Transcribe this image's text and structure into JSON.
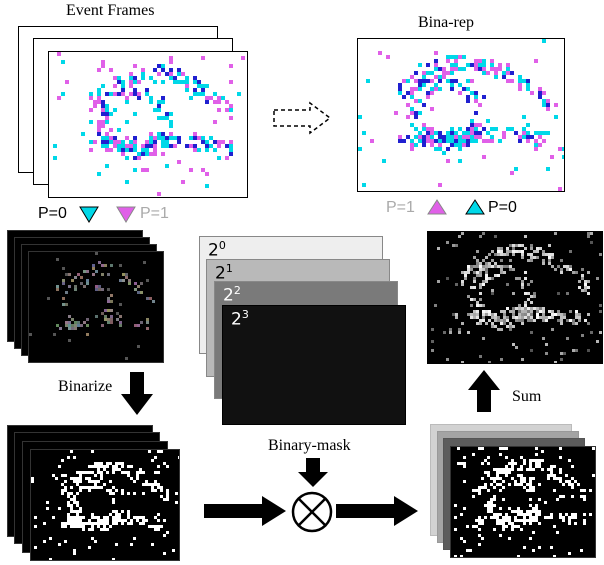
{
  "titles": {
    "event_frames": "Event Frames",
    "bina_rep": "Bina-rep"
  },
  "legend_left": {
    "p0": "P=0",
    "p1": "P=1"
  },
  "legend_right": {
    "p1": "P=1",
    "p0": "P=0"
  },
  "steps": {
    "binarize": "Binarize",
    "binary_mask": "Binary-mask",
    "sum": "Sum"
  },
  "weights": [
    {
      "base": "2",
      "exp": "0"
    },
    {
      "base": "2",
      "exp": "1"
    },
    {
      "base": "2",
      "exp": "2"
    },
    {
      "base": "2",
      "exp": "3"
    }
  ],
  "colors": {
    "p0_cyan": "#00d8e8",
    "p1_magenta": "#e060e8",
    "blue": "#2020d0",
    "muted_label": "#aaaaaa"
  },
  "icons": {
    "operator": "circled-times-icon"
  }
}
